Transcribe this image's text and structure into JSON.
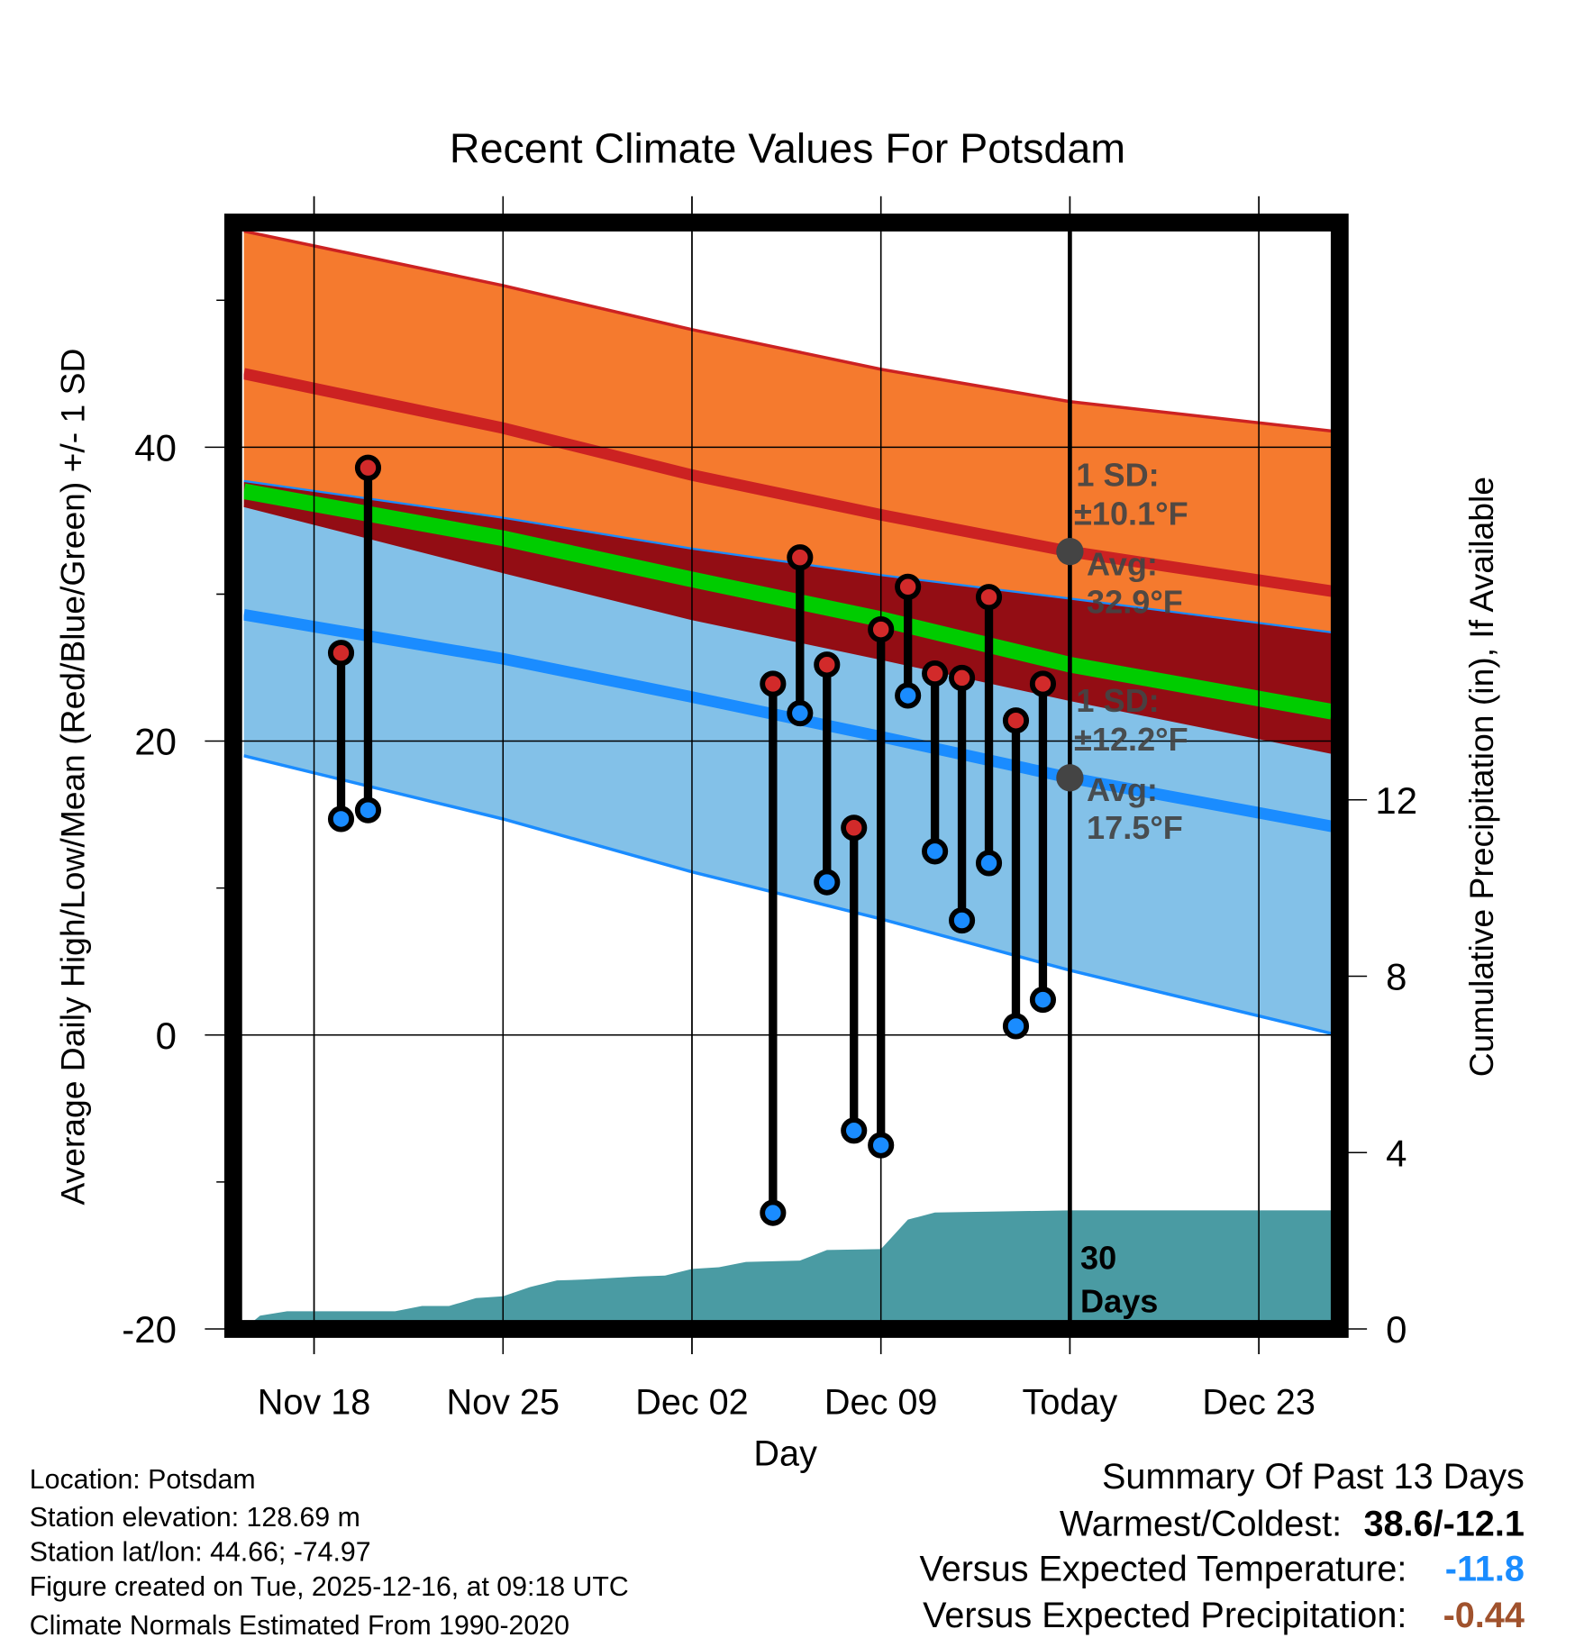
{
  "chart_data": {
    "type": "line",
    "title": "Recent Climate Values For Potsdam",
    "xlabel": "Day",
    "ylabel": "Average Daily High/Low/Mean (Red/Blue/Green) +/- 1 SD",
    "y2label": "Cumulative Precipitation (in), If Available",
    "ylim": [
      -20,
      55
    ],
    "y2lim": [
      0,
      17.9
    ],
    "xlim_days_from_nov18": [
      -2.6,
      37.7
    ],
    "grid": true,
    "x_ticks": [
      {
        "day": 0,
        "label": "Nov 18"
      },
      {
        "day": 7,
        "label": "Nov 25"
      },
      {
        "day": 14,
        "label": "Dec 02"
      },
      {
        "day": 21,
        "label": "Dec 09"
      },
      {
        "day": 28,
        "label": "Today"
      },
      {
        "day": 35,
        "label": "Dec 23"
      }
    ],
    "y_ticks": [
      {
        "v": 40,
        "label": "40"
      },
      {
        "v": 20,
        "label": "20"
      },
      {
        "v": 0,
        "label": "0"
      },
      {
        "v": -20,
        "label": "-20"
      }
    ],
    "y_minor_ticks": [
      50,
      30,
      10,
      -10
    ],
    "y2_ticks": [
      {
        "v": 0,
        "label": "0"
      },
      {
        "v": 4,
        "label": "4"
      },
      {
        "v": 8,
        "label": "8"
      },
      {
        "v": 12,
        "label": "12"
      }
    ],
    "normals": {
      "days": [
        -2.6,
        7,
        14,
        21,
        28,
        37.7
      ],
      "high_upper_sd": [
        54.7,
        51.0,
        48.0,
        45.3,
        43.1,
        41.1
      ],
      "high_avg": [
        45.0,
        41.3,
        38.1,
        35.4,
        32.9,
        30.2
      ],
      "high_lower_sd": [
        36.0,
        31.5,
        28.3,
        25.6,
        22.8,
        19.2
      ],
      "low_upper_sd": [
        37.7,
        35.2,
        33.1,
        31.3,
        29.7,
        27.4
      ],
      "low_avg": [
        28.6,
        25.6,
        23.0,
        20.3,
        17.5,
        14.2
      ],
      "low_lower_sd": [
        19.0,
        14.7,
        11.1,
        7.9,
        4.4,
        0.1
      ],
      "mean": [
        37.0,
        33.8,
        31.0,
        28.3,
        25.2,
        22.0
      ]
    },
    "observations": [
      {
        "day": 1,
        "high": 26.0,
        "low": 14.7
      },
      {
        "day": 2,
        "high": 38.6,
        "low": 15.3
      },
      {
        "day": 17,
        "high": 23.9,
        "low": -12.1
      },
      {
        "day": 18,
        "high": 32.5,
        "low": 21.9
      },
      {
        "day": 19,
        "high": 25.2,
        "low": 10.4
      },
      {
        "day": 20,
        "high": 14.1,
        "low": -6.5
      },
      {
        "day": 21,
        "high": 27.6,
        "low": -7.5
      },
      {
        "day": 22,
        "high": 30.5,
        "low": 23.1
      },
      {
        "day": 23,
        "high": 24.6,
        "low": 12.5
      },
      {
        "day": 24,
        "high": 24.3,
        "low": 7.8
      },
      {
        "day": 25,
        "high": 29.8,
        "low": 11.7
      },
      {
        "day": 26,
        "high": 21.4,
        "low": 0.6
      },
      {
        "day": 27,
        "high": 23.9,
        "low": 2.4
      }
    ],
    "precip_cumulative": {
      "days": [
        -2.6,
        -2,
        -1,
        3,
        4,
        5,
        6,
        7,
        8,
        9,
        10,
        12,
        13,
        14,
        15,
        16,
        18,
        19,
        21,
        22,
        23,
        28,
        37.7
      ],
      "values": [
        0,
        0.3,
        0.4,
        0.4,
        0.52,
        0.52,
        0.7,
        0.74,
        0.95,
        1.1,
        1.12,
        1.19,
        1.21,
        1.36,
        1.4,
        1.52,
        1.55,
        1.79,
        1.81,
        2.48,
        2.64,
        2.69,
        2.69
      ]
    },
    "annotations": {
      "high_sd_label": "1 SD:",
      "high_sd_value": "±10.1°F",
      "high_avg_label": "Avg:",
      "high_avg_value": "32.9°F",
      "low_sd_label": "1 SD:",
      "low_sd_value": "±12.2°F",
      "low_avg_label": "Avg:",
      "low_avg_value": "17.5°F",
      "window_line1": "30",
      "window_line2": "Days",
      "today_high_avg": 32.9,
      "today_low_avg": 17.5
    },
    "colors": {
      "orange": "#f57a2e",
      "red_line": "#cc2222",
      "dark_red": "#930d14",
      "light_blue": "#83c1e8",
      "blue_line": "#1a8cff",
      "green": "#00cc00",
      "precip": "#4a9ba3",
      "annot": "#444444"
    }
  },
  "footer": {
    "location": "Location: Potsdam",
    "elevation": "Station elevation: 128.69 m",
    "latlon": "Station lat/lon: 44.66; -74.97",
    "created": "Figure created on Tue, 2025-12-16, at 09:18 UTC",
    "normals": "Climate Normals Estimated From 1990-2020"
  },
  "summary": {
    "title": "Summary Of Past 13 Days",
    "warm_cold_label": "Warmest/Coldest:",
    "warm_cold_value": "38.6/-12.1",
    "temp_label": "Versus Expected Temperature:",
    "temp_value": "-11.8",
    "temp_color": "#1a8cff",
    "precip_label": "Versus Expected Precipitation:",
    "precip_value": "-0.44",
    "precip_color": "#a0522d"
  }
}
